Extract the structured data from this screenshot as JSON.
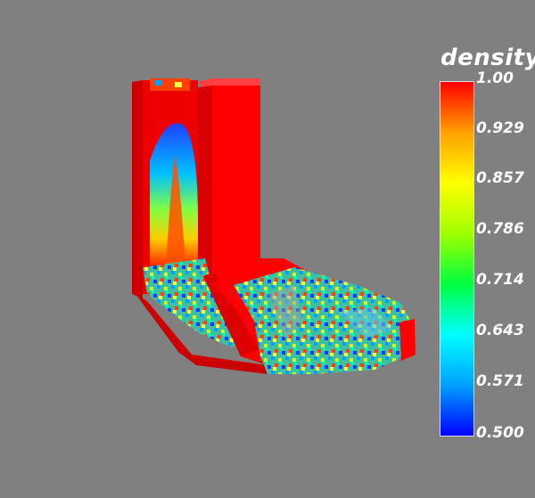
{
  "legend": {
    "title": "density",
    "ticks": [
      "1.00",
      "0.929",
      "0.857",
      "0.786",
      "0.714",
      "0.643",
      "0.571",
      "0.500"
    ],
    "range": [
      0.5,
      1.0
    ]
  },
  "colors": {
    "background": "#808080",
    "colormap": [
      "#0000ff",
      "#00a0ff",
      "#00ffff",
      "#00ff40",
      "#a0ff00",
      "#ffff00",
      "#ffa000",
      "#ff0000"
    ]
  }
}
